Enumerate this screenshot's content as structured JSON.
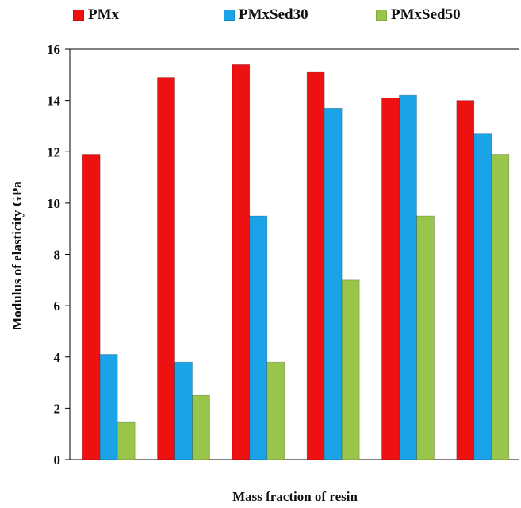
{
  "chart_data": {
    "type": "bar",
    "title": "",
    "xlabel": "Mass fraction of resin",
    "ylabel": "Modulus of elasticity GPa",
    "ylim": [
      0,
      16
    ],
    "yticks": [
      0,
      2,
      4,
      6,
      8,
      10,
      12,
      14,
      16
    ],
    "grid": false,
    "legend_position": "top",
    "categories": [
      "",
      "",
      "",
      "",
      "",
      ""
    ],
    "series": [
      {
        "name": "PMx",
        "color": "#ee1111",
        "values": [
          11.9,
          14.9,
          15.4,
          15.1,
          14.1,
          14.0
        ]
      },
      {
        "name": "PMxSed30",
        "color": "#1aa3e8",
        "values": [
          4.1,
          3.8,
          9.5,
          13.7,
          14.2,
          12.7
        ]
      },
      {
        "name": "PMxSed50",
        "color": "#99c64a",
        "values": [
          1.45,
          2.5,
          3.8,
          7.0,
          9.5,
          11.9
        ]
      }
    ]
  }
}
